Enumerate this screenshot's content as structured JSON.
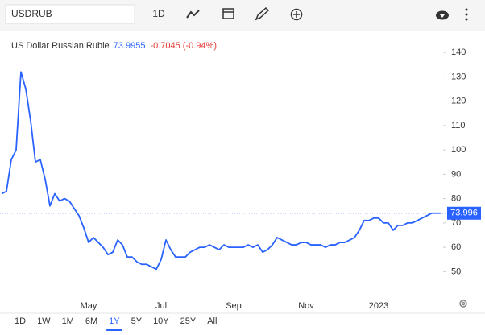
{
  "toolbar": {
    "symbol": "USDRUB",
    "interval": "1D"
  },
  "chart_data": {
    "type": "line",
    "title": "US Dollar Russian Ruble",
    "price_label": "73.9955",
    "change_label": "-0.7045 (-0.94%)",
    "last_value": 73.996,
    "categories": [
      null,
      null,
      null,
      null,
      null,
      null,
      null,
      null,
      null,
      null,
      null,
      null,
      null,
      null,
      null,
      null,
      null,
      null,
      "May",
      null,
      null,
      null,
      null,
      null,
      null,
      null,
      null,
      null,
      null,
      null,
      null,
      null,
      null,
      "Jul",
      null,
      null,
      null,
      null,
      null,
      null,
      null,
      null,
      null,
      null,
      null,
      null,
      null,
      null,
      "Sep",
      null,
      null,
      null,
      null,
      null,
      null,
      null,
      null,
      null,
      null,
      null,
      null,
      null,
      null,
      "Nov",
      null,
      null,
      null,
      null,
      null,
      null,
      null,
      null,
      null,
      null,
      null,
      null,
      null,
      null,
      "2023",
      null,
      null,
      null,
      null,
      null,
      null,
      null,
      null,
      null,
      null,
      null,
      null,
      null
    ],
    "series": [
      {
        "name": "US Dollar Russian Ruble",
        "color": "#2962ff",
        "values": [
          82,
          83,
          96,
          100,
          132,
          125,
          112,
          95,
          96,
          88,
          77,
          82,
          79,
          80,
          79,
          76,
          73,
          68,
          62,
          64,
          62,
          60,
          57,
          58,
          63,
          61,
          56,
          56,
          54,
          53,
          53,
          52,
          51,
          55,
          63,
          59,
          56,
          56,
          56,
          58,
          59,
          60,
          60,
          61,
          60,
          59,
          61,
          60,
          60,
          60,
          60,
          61,
          60,
          61,
          58,
          59,
          61,
          64,
          63,
          62,
          61,
          61,
          62,
          62,
          61,
          61,
          61,
          60,
          61,
          61,
          62,
          62,
          63,
          64,
          67,
          71,
          71,
          72,
          72,
          70,
          70,
          67,
          69,
          69,
          70,
          70,
          71,
          72,
          73,
          74,
          74,
          74
        ]
      }
    ],
    "ylim": [
      40,
      145
    ],
    "yticks": [
      50,
      60,
      70,
      80,
      90,
      100,
      110,
      120,
      130,
      140
    ],
    "grid": false
  },
  "ranges": [
    "1D",
    "1W",
    "1M",
    "6M",
    "1Y",
    "5Y",
    "10Y",
    "25Y",
    "All"
  ],
  "active_range": 4
}
